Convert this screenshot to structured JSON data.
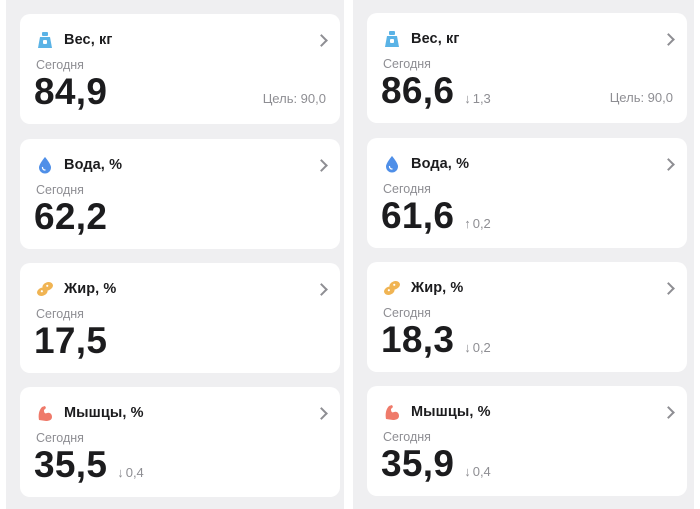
{
  "colors": {
    "weight_icon": "#5ab3e6",
    "water_icon": "#4f8fe8",
    "fat_icon": "#f0b453",
    "muscle_icon": "#ef7a6a"
  },
  "left": {
    "weight": {
      "icon": "scale-weight-icon",
      "title": "Вес, кг",
      "period": "Сегодня",
      "value": "84,9",
      "goal": "Цель: 90,0"
    },
    "water": {
      "icon": "water-drop-icon",
      "title": "Вода, %",
      "period": "Сегодня",
      "value": "62,2"
    },
    "fat": {
      "icon": "fat-icon",
      "title": "Жир, %",
      "period": "Сегодня",
      "value": "17,5"
    },
    "muscle": {
      "icon": "flexed-bicep-icon",
      "title": "Мышцы, %",
      "period": "Сегодня",
      "value": "35,5",
      "delta_arrow": "↓",
      "delta": "0,4"
    }
  },
  "right": {
    "weight": {
      "icon": "scale-weight-icon",
      "title": "Вес, кг",
      "period": "Сегодня",
      "value": "86,6",
      "delta_arrow": "↓",
      "delta": "1,3",
      "goal": "Цель: 90,0"
    },
    "water": {
      "icon": "water-drop-icon",
      "title": "Вода, %",
      "period": "Сегодня",
      "value": "61,6",
      "delta_arrow": "↑",
      "delta": "0,2"
    },
    "fat": {
      "icon": "fat-icon",
      "title": "Жир, %",
      "period": "Сегодня",
      "value": "18,3",
      "delta_arrow": "↓",
      "delta": "0,2"
    },
    "muscle": {
      "icon": "flexed-bicep-icon",
      "title": "Мышцы, %",
      "period": "Сегодня",
      "value": "35,9",
      "delta_arrow": "↓",
      "delta": "0,4"
    }
  }
}
